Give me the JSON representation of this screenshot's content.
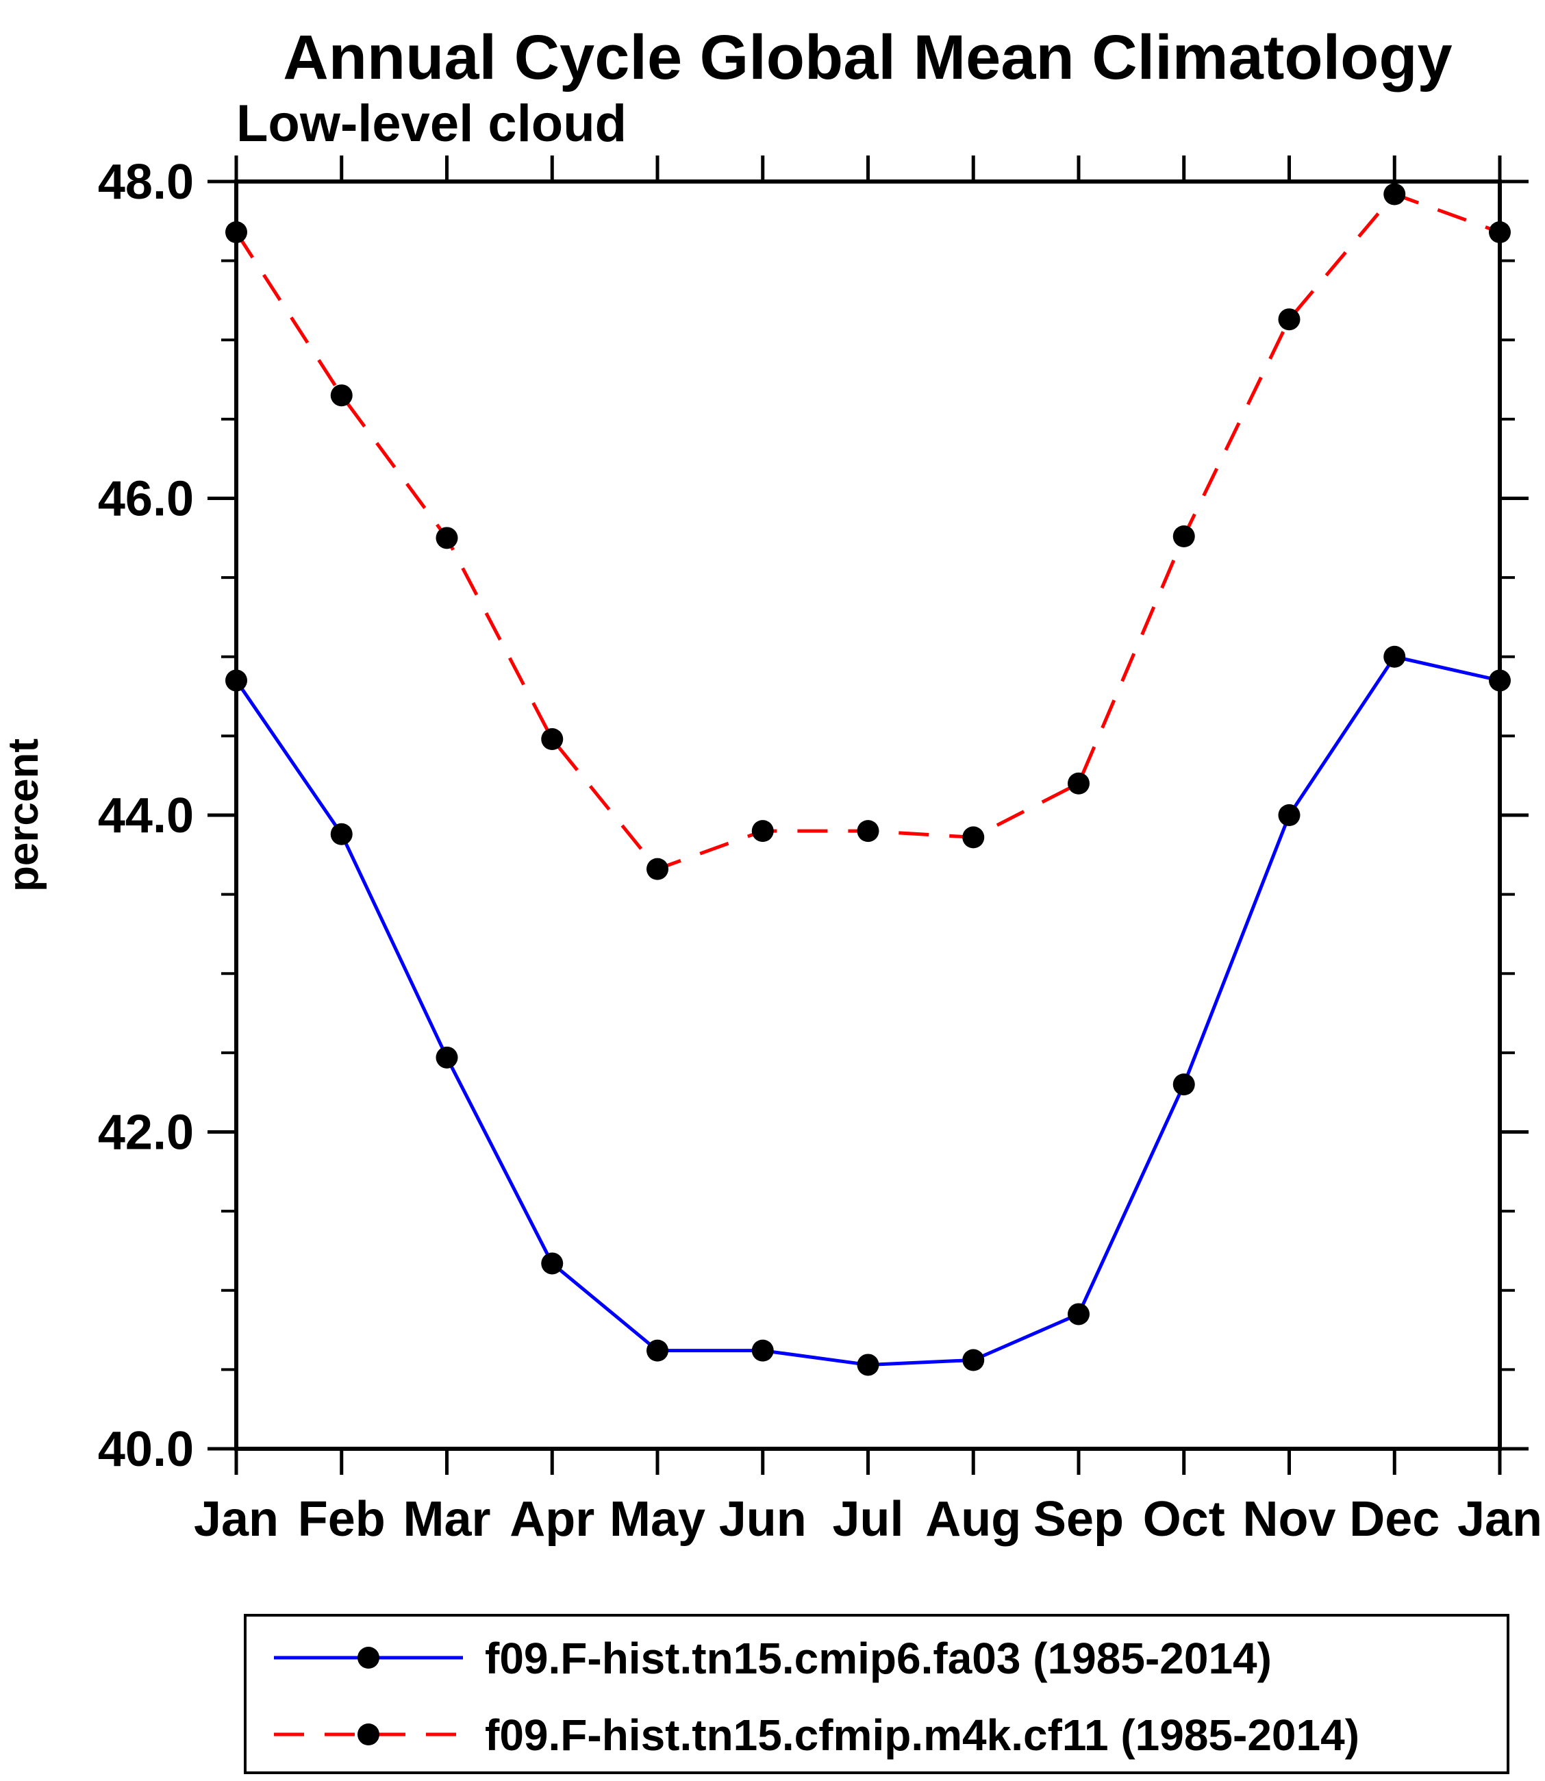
{
  "chart_data": {
    "type": "line",
    "title": "Annual Cycle Global Mean Climatology",
    "subtitle": "Low-level cloud",
    "xlabel": "",
    "ylabel": "percent",
    "categories": [
      "Jan",
      "Feb",
      "Mar",
      "Apr",
      "May",
      "Jun",
      "Jul",
      "Aug",
      "Sep",
      "Oct",
      "Nov",
      "Dec",
      "Jan"
    ],
    "ylim": [
      40.0,
      48.0
    ],
    "yticks": [
      40.0,
      42.0,
      44.0,
      46.0,
      48.0
    ],
    "ytick_labels": [
      "40.0",
      "42.0",
      "44.0",
      "46.0",
      "48.0"
    ],
    "minor_tick_step": 0.5,
    "grid": false,
    "legend_position": "bottom",
    "frame_color": "#000000",
    "series": [
      {
        "name": "f09.F-hist.tn15.cmip6.fa03 (1985-2014)",
        "color": "#0000ff",
        "line_style": "solid",
        "marker": "filled-circle",
        "marker_color": "#000000",
        "values": [
          44.85,
          43.88,
          42.47,
          41.17,
          40.62,
          40.62,
          40.53,
          40.56,
          40.85,
          42.3,
          44.0,
          45.0,
          44.85
        ]
      },
      {
        "name": "f09.F-hist.tn15.cfmip.m4k.cf11 (1985-2014)",
        "color": "#ff0000",
        "line_style": "dashed",
        "marker": "filled-circle",
        "marker_color": "#000000",
        "values": [
          47.68,
          46.65,
          45.75,
          44.48,
          43.66,
          43.9,
          43.9,
          43.86,
          44.2,
          45.76,
          47.13,
          47.92,
          47.68
        ]
      }
    ]
  }
}
